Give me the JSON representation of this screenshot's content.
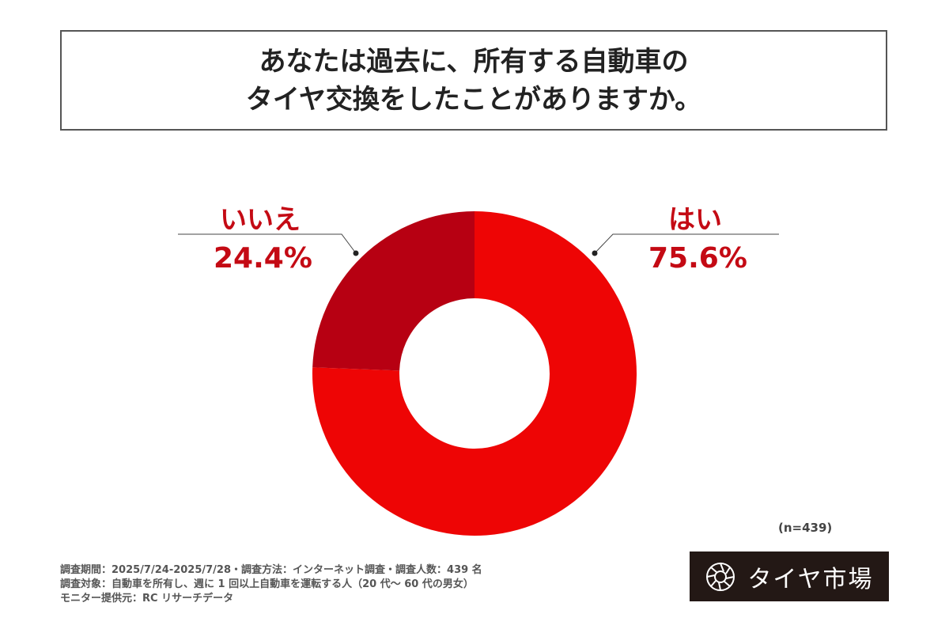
{
  "title": [
    "あなたは過去に、所有する自動車の",
    "タイヤ交換をしたことがありますか。"
  ],
  "chart_data": {
    "type": "pie",
    "donut": true,
    "slices": [
      {
        "label": "はい",
        "value": 75.6,
        "display": "75.6%",
        "color": "#ee0505"
      },
      {
        "label": "いいえ",
        "value": 24.4,
        "display": "24.4%",
        "color": "#b70012"
      }
    ],
    "start": "12 o'clock, clockwise"
  },
  "sample": "(n=439)",
  "footer": [
    "調査期間：2025/7/24-2025/7/28・調査方法：インターネット調査・調査人数：439 名",
    "調査対象：自動車を所有し、週に 1 回以上自動車を運転する人（20 代〜 60 代の男女）",
    "モニター提供元：RC リサーチデータ"
  ],
  "logo": {
    "text": "タイヤ市場",
    "icon": "tire-icon"
  }
}
